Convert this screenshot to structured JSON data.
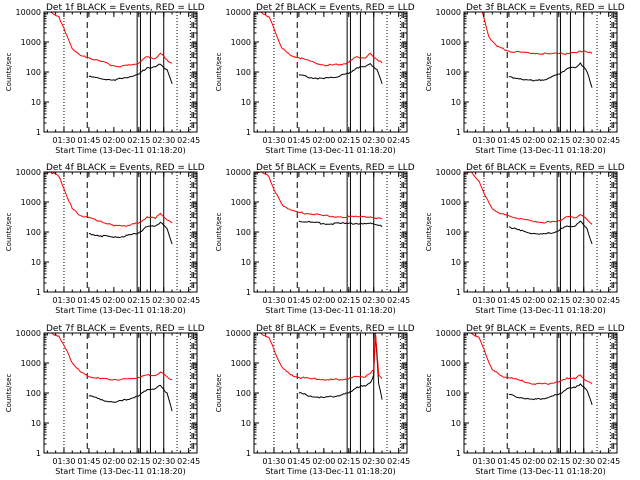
{
  "figure": {
    "xlabel": "Start Time (13-Dec-11 01:18:20)",
    "ylabel": "Counts/sec",
    "colors": {
      "events": "#000000",
      "lld": "#ff0000",
      "axes": "#000000"
    }
  },
  "chart_data": [
    {
      "type": "line",
      "title": "Det 1f BLACK = Events, RED = LLD",
      "xlim": [
        "01:18",
        "02:50"
      ],
      "ylim": [
        1,
        10000
      ],
      "yscale": "log",
      "xticks": [
        "01:30",
        "01:45",
        "02:00",
        "02:15",
        "02:30",
        "02:45"
      ],
      "yticks": [
        "1",
        "10",
        "100",
        "1000",
        "10000"
      ],
      "series": [
        {
          "name": "Events",
          "x": [
            "01:40",
            "01:45",
            "01:52",
            "02:00",
            "02:05",
            "02:10",
            "02:15",
            "02:20",
            "02:25",
            "02:28",
            "02:32",
            "02:35"
          ],
          "y": [
            null,
            70,
            60,
            55,
            60,
            70,
            85,
            140,
            150,
            180,
            120,
            40
          ]
        },
        {
          "name": "LLD",
          "x": [
            "01:18",
            "01:22",
            "01:27",
            "01:31",
            "01:35",
            "01:40",
            "01:45",
            "01:52",
            "02:00",
            "02:05",
            "02:10",
            "02:15",
            "02:20",
            "02:25",
            "02:28",
            "02:32",
            "02:35"
          ],
          "y": [
            10000,
            10000,
            7000,
            2000,
            600,
            350,
            300,
            230,
            160,
            160,
            170,
            200,
            320,
            280,
            420,
            250,
            200
          ]
        }
      ],
      "markers": {
        "dotted": [
          "01:30",
          "02:38",
          "02:46"
        ],
        "dashed": [
          "01:44",
          "02:47",
          "02:48"
        ],
        "solid": [
          "02:14",
          "02:16",
          "02:22",
          "02:30"
        ]
      }
    },
    {
      "type": "line",
      "title": "Det 2f BLACK = Events, RED = LLD",
      "xlim": [
        "01:18",
        "02:50"
      ],
      "ylim": [
        1,
        10000
      ],
      "yscale": "log",
      "xticks": [
        "01:30",
        "01:45",
        "02:00",
        "02:15",
        "02:30",
        "02:45"
      ],
      "yticks": [
        "1",
        "10",
        "100",
        "1000",
        "10000"
      ],
      "series": [
        {
          "name": "Events",
          "x": [
            "01:40",
            "01:45",
            "01:52",
            "02:00",
            "02:05",
            "02:10",
            "02:15",
            "02:20",
            "02:25",
            "02:28",
            "02:32",
            "02:35"
          ],
          "y": [
            null,
            80,
            65,
            60,
            65,
            75,
            90,
            140,
            150,
            190,
            120,
            40
          ]
        },
        {
          "name": "LLD",
          "x": [
            "01:18",
            "01:22",
            "01:27",
            "01:31",
            "01:35",
            "01:40",
            "01:45",
            "01:52",
            "02:00",
            "02:05",
            "02:10",
            "02:15",
            "02:20",
            "02:25",
            "02:28",
            "02:32",
            "02:35"
          ],
          "y": [
            10000,
            10000,
            7000,
            2000,
            600,
            350,
            300,
            230,
            170,
            170,
            180,
            210,
            320,
            290,
            420,
            260,
            200
          ]
        }
      ],
      "markers": {
        "dotted": [
          "01:30",
          "02:38",
          "02:46"
        ],
        "dashed": [
          "01:44",
          "02:47",
          "02:48"
        ],
        "solid": [
          "02:14",
          "02:16",
          "02:22",
          "02:30"
        ]
      }
    },
    {
      "type": "line",
      "title": "Det 3f BLACK = Events, RED = LLD",
      "xlim": [
        "01:18",
        "02:50"
      ],
      "ylim": [
        1,
        10000
      ],
      "yscale": "log",
      "xticks": [
        "01:30",
        "01:45",
        "02:00",
        "02:15",
        "02:30",
        "02:45"
      ],
      "yticks": [
        "1",
        "10",
        "100",
        "1000",
        "10000"
      ],
      "series": [
        {
          "name": "Events",
          "x": [
            "01:40",
            "01:45",
            "01:52",
            "02:00",
            "02:05",
            "02:10",
            "02:15",
            "02:20",
            "02:25",
            "02:28",
            "02:32",
            "02:35"
          ],
          "y": [
            null,
            70,
            60,
            50,
            55,
            65,
            85,
            130,
            140,
            200,
            100,
            30
          ]
        },
        {
          "name": "LLD",
          "x": [
            "01:29",
            "01:33",
            "01:38",
            "01:45",
            "01:52",
            "02:00",
            "02:10",
            "02:20",
            "02:28",
            "02:35"
          ],
          "y": [
            10000,
            1500,
            700,
            500,
            450,
            420,
            400,
            420,
            500,
            420
          ]
        }
      ],
      "markers": {
        "dotted": [
          "01:30",
          "02:38",
          "02:46"
        ],
        "dashed": [
          "01:44",
          "02:47",
          "02:48"
        ],
        "solid": [
          "02:14",
          "02:16",
          "02:22",
          "02:30"
        ]
      }
    },
    {
      "type": "line",
      "title": "Det 4f BLACK = Events, RED = LLD",
      "xlim": [
        "01:18",
        "02:50"
      ],
      "ylim": [
        1,
        10000
      ],
      "yscale": "log",
      "xticks": [
        "01:30",
        "01:45",
        "02:00",
        "02:15",
        "02:30",
        "02:45"
      ],
      "yticks": [
        "1",
        "10",
        "100",
        "1000",
        "10000"
      ],
      "series": [
        {
          "name": "Events",
          "x": [
            "01:40",
            "01:45",
            "01:52",
            "02:00",
            "02:05",
            "02:10",
            "02:15",
            "02:20",
            "02:25",
            "02:28",
            "02:32",
            "02:35"
          ],
          "y": [
            null,
            90,
            75,
            65,
            70,
            80,
            95,
            150,
            160,
            210,
            130,
            40
          ]
        },
        {
          "name": "LLD",
          "x": [
            "01:18",
            "01:22",
            "01:27",
            "01:31",
            "01:35",
            "01:40",
            "01:45",
            "01:52",
            "02:00",
            "02:05",
            "02:10",
            "02:15",
            "02:20",
            "02:25",
            "02:28",
            "02:32",
            "02:35"
          ],
          "y": [
            10000,
            10000,
            7000,
            2000,
            600,
            350,
            300,
            230,
            160,
            160,
            170,
            200,
            320,
            280,
            420,
            250,
            200
          ]
        }
      ],
      "markers": {
        "dotted": [
          "01:30",
          "02:38",
          "02:46"
        ],
        "dashed": [
          "01:44",
          "02:47",
          "02:48"
        ],
        "solid": [
          "02:14",
          "02:16",
          "02:22",
          "02:30"
        ]
      }
    },
    {
      "type": "line",
      "title": "Det 5f BLACK = Events, RED = LLD",
      "xlim": [
        "01:18",
        "02:50"
      ],
      "ylim": [
        1,
        10000
      ],
      "yscale": "log",
      "xticks": [
        "01:30",
        "01:45",
        "02:00",
        "02:15",
        "02:30",
        "02:45"
      ],
      "yticks": [
        "1",
        "10",
        "100",
        "1000",
        "10000"
      ],
      "series": [
        {
          "name": "Events",
          "x": [
            "01:40",
            "01:45",
            "01:52",
            "02:00",
            "02:10",
            "02:20",
            "02:28",
            "02:35"
          ],
          "y": [
            null,
            230,
            210,
            190,
            190,
            190,
            200,
            150
          ]
        },
        {
          "name": "LLD",
          "x": [
            "01:18",
            "01:22",
            "01:27",
            "01:31",
            "01:35",
            "01:40",
            "01:45",
            "01:52",
            "02:00",
            "02:10",
            "02:20",
            "02:28",
            "02:35"
          ],
          "y": [
            10000,
            10000,
            7000,
            2000,
            800,
            550,
            450,
            400,
            350,
            320,
            320,
            320,
            280
          ]
        }
      ],
      "markers": {
        "dotted": [
          "01:30",
          "02:38",
          "02:46"
        ],
        "dashed": [
          "01:44",
          "02:47",
          "02:48"
        ],
        "solid": [
          "02:14",
          "02:16",
          "02:22",
          "02:30"
        ]
      }
    },
    {
      "type": "line",
      "title": "Det 6f BLACK = Events, RED = LLD",
      "xlim": [
        "01:18",
        "02:50"
      ],
      "ylim": [
        1,
        10000
      ],
      "yscale": "log",
      "xticks": [
        "01:30",
        "01:45",
        "02:00",
        "02:15",
        "02:30",
        "02:45"
      ],
      "yticks": [
        "1",
        "10",
        "100",
        "1000",
        "10000"
      ],
      "series": [
        {
          "name": "Events",
          "x": [
            "01:40",
            "01:45",
            "01:52",
            "02:00",
            "02:05",
            "02:10",
            "02:15",
            "02:20",
            "02:25",
            "02:28",
            "02:32",
            "02:35"
          ],
          "y": [
            null,
            150,
            110,
            90,
            85,
            90,
            110,
            160,
            160,
            230,
            130,
            40
          ]
        },
        {
          "name": "LLD",
          "x": [
            "01:18",
            "01:22",
            "01:27",
            "01:31",
            "01:35",
            "01:40",
            "01:45",
            "01:52",
            "02:00",
            "02:05",
            "02:10",
            "02:15",
            "02:20",
            "02:25",
            "02:28",
            "02:32",
            "02:35"
          ],
          "y": [
            10000,
            10000,
            5000,
            1500,
            600,
            400,
            350,
            280,
            220,
            210,
            210,
            240,
            320,
            300,
            380,
            260,
            180
          ]
        }
      ],
      "markers": {
        "dotted": [
          "01:30",
          "02:38",
          "02:46"
        ],
        "dashed": [
          "01:44",
          "02:47",
          "02:48"
        ],
        "solid": [
          "02:14",
          "02:16",
          "02:22",
          "02:30"
        ]
      }
    },
    {
      "type": "line",
      "title": "Det 7f BLACK = Events, RED = LLD",
      "xlim": [
        "01:18",
        "02:50"
      ],
      "ylim": [
        1,
        10000
      ],
      "yscale": "log",
      "xticks": [
        "01:30",
        "01:45",
        "02:00",
        "02:15",
        "02:30",
        "02:45"
      ],
      "yticks": [
        "1",
        "10",
        "100",
        "1000",
        "10000"
      ],
      "series": [
        {
          "name": "Events",
          "x": [
            "01:40",
            "01:45",
            "01:52",
            "02:00",
            "02:05",
            "02:10",
            "02:15",
            "02:20",
            "02:25",
            "02:28",
            "02:32",
            "02:35"
          ],
          "y": [
            null,
            80,
            60,
            50,
            55,
            65,
            80,
            130,
            140,
            180,
            100,
            25
          ]
        },
        {
          "name": "LLD",
          "x": [
            "01:18",
            "01:22",
            "01:27",
            "01:31",
            "01:35",
            "01:40",
            "01:45",
            "01:52",
            "02:00",
            "02:05",
            "02:10",
            "02:15",
            "02:20",
            "02:25",
            "02:28",
            "02:32",
            "02:35"
          ],
          "y": [
            10000,
            10000,
            8000,
            3000,
            1000,
            500,
            350,
            300,
            280,
            290,
            300,
            330,
            400,
            380,
            500,
            350,
            280
          ]
        }
      ],
      "markers": {
        "dotted": [
          "01:30",
          "02:38",
          "02:46"
        ],
        "dashed": [
          "01:44",
          "02:47",
          "02:48"
        ],
        "solid": [
          "02:14",
          "02:16",
          "02:22",
          "02:30"
        ]
      }
    },
    {
      "type": "line",
      "title": "Det 8f BLACK = Events, RED = LLD",
      "xlim": [
        "01:18",
        "02:50"
      ],
      "ylim": [
        1,
        10000
      ],
      "yscale": "log",
      "xticks": [
        "01:30",
        "01:45",
        "02:00",
        "02:15",
        "02:30",
        "02:45"
      ],
      "yticks": [
        "1",
        "10",
        "100",
        "1000",
        "10000"
      ],
      "series": [
        {
          "name": "Events",
          "x": [
            "01:40",
            "01:45",
            "01:52",
            "02:00",
            "02:05",
            "02:10",
            "02:15",
            "02:20",
            "02:25",
            "02:28",
            "02:30",
            "02:31",
            "02:33",
            "02:35"
          ],
          "y": [
            null,
            100,
            80,
            70,
            75,
            85,
            100,
            160,
            170,
            220,
            400,
            10000,
            200,
            60
          ]
        },
        {
          "name": "LLD",
          "x": [
            "01:18",
            "01:22",
            "01:27",
            "01:31",
            "01:35",
            "01:40",
            "01:45",
            "01:52",
            "02:00",
            "02:05",
            "02:10",
            "02:15",
            "02:20",
            "02:25",
            "02:28",
            "02:30",
            "02:31",
            "02:33",
            "02:35"
          ],
          "y": [
            10000,
            10000,
            7000,
            2000,
            700,
            400,
            330,
            300,
            280,
            280,
            280,
            300,
            360,
            340,
            450,
            600,
            10000,
            400,
            300
          ]
        }
      ],
      "markers": {
        "dotted": [
          "01:30",
          "02:38",
          "02:46"
        ],
        "dashed": [
          "01:44",
          "02:47",
          "02:48"
        ],
        "solid": [
          "02:14",
          "02:16",
          "02:22",
          "02:30"
        ]
      }
    },
    {
      "type": "line",
      "title": "Det 9f BLACK = Events, RED = LLD",
      "xlim": [
        "01:18",
        "02:50"
      ],
      "ylim": [
        1,
        10000
      ],
      "yscale": "log",
      "xticks": [
        "01:30",
        "01:45",
        "02:00",
        "02:15",
        "02:30",
        "02:45"
      ],
      "yticks": [
        "1",
        "10",
        "100",
        "1000",
        "10000"
      ],
      "series": [
        {
          "name": "Events",
          "x": [
            "01:40",
            "01:45",
            "01:52",
            "02:00",
            "02:05",
            "02:10",
            "02:15",
            "02:20",
            "02:25",
            "02:28",
            "02:32",
            "02:35"
          ],
          "y": [
            null,
            90,
            70,
            60,
            65,
            75,
            90,
            140,
            150,
            200,
            120,
            40
          ]
        },
        {
          "name": "LLD",
          "x": [
            "01:18",
            "01:22",
            "01:27",
            "01:31",
            "01:35",
            "01:40",
            "01:45",
            "01:52",
            "02:00",
            "02:05",
            "02:10",
            "02:15",
            "02:20",
            "02:25",
            "02:28",
            "02:32",
            "02:35"
          ],
          "y": [
            10000,
            10000,
            7000,
            2000,
            600,
            380,
            320,
            260,
            200,
            200,
            210,
            230,
            320,
            300,
            400,
            250,
            200
          ]
        }
      ],
      "markers": {
        "dotted": [
          "01:30",
          "02:38",
          "02:46"
        ],
        "dashed": [
          "01:44",
          "02:47",
          "02:48"
        ],
        "solid": [
          "02:14",
          "02:16",
          "02:22",
          "02:30"
        ]
      }
    }
  ]
}
